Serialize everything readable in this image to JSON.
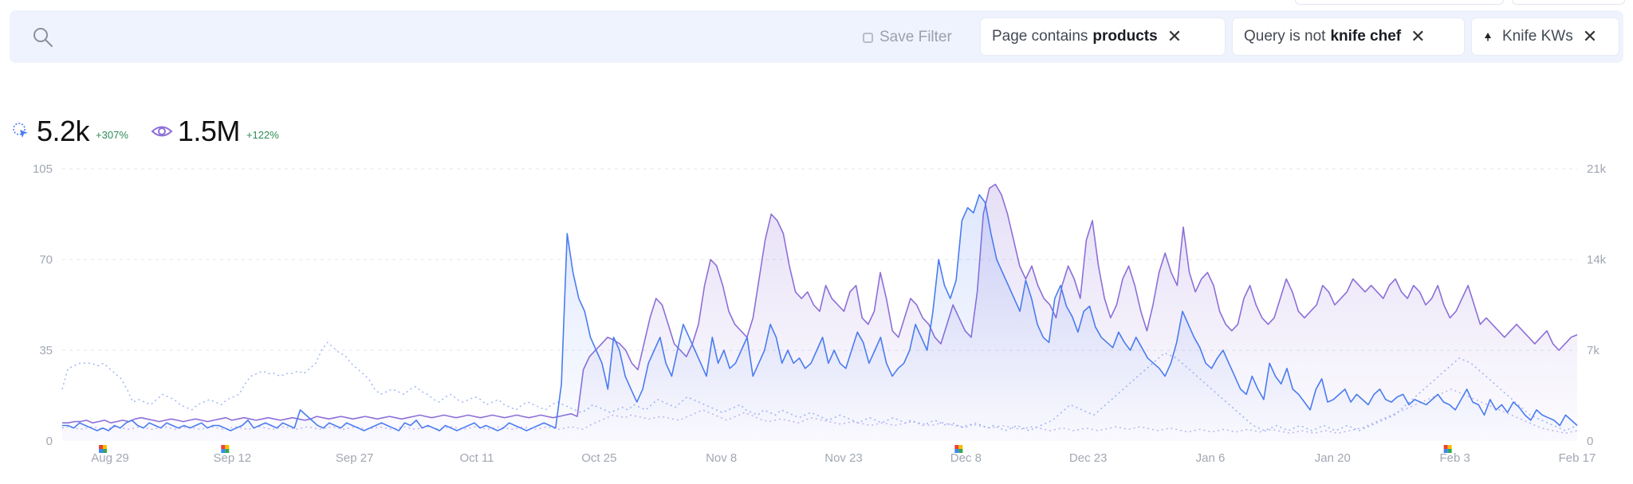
{
  "filter_bar": {
    "save_filter_label": "Save Filter",
    "chips": [
      {
        "prefix": "Page contains",
        "value": "products",
        "icon": "",
        "close": "✕"
      },
      {
        "prefix": "Query is not",
        "value": "knife chef",
        "icon": "",
        "close": "✕"
      },
      {
        "prefix": "Knife KWs",
        "value": "",
        "icon": "pin-icon",
        "close": "✕"
      }
    ]
  },
  "metrics": {
    "clicks": {
      "icon": "click-cursor-icon",
      "value": "5.2k",
      "delta": "+307%",
      "color": "#4a7cf0"
    },
    "impressions": {
      "icon": "eye-icon",
      "value": "1.5M",
      "delta": "+122%",
      "color": "#8d6fd8"
    }
  },
  "colors": {
    "clicks": "#4a7cf0",
    "impressions": "#8d6fd8",
    "delta_positive": "#2e8b57",
    "filter_bg": "#eef3fd"
  },
  "chart_data": {
    "type": "line",
    "x_labels": [
      "Aug 29",
      "Sep 12",
      "Sep 27",
      "Oct 11",
      "Oct 25",
      "Nov 8",
      "Nov 23",
      "Dec 8",
      "Dec 23",
      "Jan 6",
      "Jan 20",
      "Feb 3",
      "Feb 17"
    ],
    "annotation_labels": [
      "Aug 29",
      "Sep 12",
      "Dec 8",
      "Feb 3"
    ],
    "y_left": {
      "ticks": [
        "0",
        "35",
        "70",
        "105"
      ],
      "range": [
        0,
        105
      ]
    },
    "y_right": {
      "ticks": [
        "0",
        "7k",
        "14k",
        "21k"
      ],
      "range": [
        0,
        21000
      ]
    },
    "grid": true,
    "series": [
      {
        "role": "clicks",
        "axis": "left",
        "style": "solid",
        "values": [
          6,
          6,
          5,
          7,
          6,
          5,
          4,
          5,
          4,
          6,
          5,
          7,
          8,
          6,
          5,
          7,
          6,
          5,
          7,
          6,
          5,
          6,
          5,
          6,
          7,
          5,
          6,
          6,
          5,
          4,
          5,
          6,
          8,
          5,
          6,
          7,
          6,
          5,
          7,
          6,
          5,
          12,
          10,
          8,
          6,
          5,
          7,
          6,
          5,
          7,
          6,
          5,
          4,
          5,
          6,
          7,
          6,
          5,
          4,
          7,
          6,
          8,
          5,
          6,
          5,
          4,
          6,
          5,
          4,
          5,
          6,
          7,
          5,
          6,
          5,
          4,
          5,
          7,
          6,
          5,
          4,
          5,
          6,
          7,
          6,
          5,
          22,
          80,
          65,
          55,
          50,
          40,
          35,
          30,
          20,
          40,
          35,
          25,
          20,
          15,
          20,
          30,
          35,
          40,
          30,
          25,
          35,
          45,
          40,
          35,
          30,
          25,
          40,
          30,
          35,
          28,
          30,
          35,
          40,
          25,
          30,
          35,
          45,
          40,
          30,
          35,
          30,
          32,
          28,
          30,
          35,
          40,
          30,
          35,
          30,
          28,
          35,
          42,
          38,
          30,
          35,
          40,
          30,
          25,
          28,
          30,
          35,
          45,
          40,
          35,
          50,
          70,
          60,
          55,
          62,
          85,
          90,
          88,
          95,
          92,
          80,
          70,
          65,
          60,
          55,
          50,
          62,
          55,
          45,
          40,
          38,
          55,
          60,
          52,
          48,
          42,
          50,
          52,
          44,
          40,
          38,
          36,
          42,
          38,
          35,
          40,
          36,
          32,
          30,
          28,
          25,
          30,
          38,
          50,
          45,
          40,
          36,
          30,
          28,
          32,
          35,
          30,
          25,
          20,
          18,
          25,
          20,
          16,
          30,
          25,
          22,
          28,
          20,
          18,
          15,
          12,
          20,
          24,
          15,
          16,
          18,
          20,
          15,
          18,
          16,
          14,
          18,
          20,
          16,
          15,
          17,
          18,
          14,
          16,
          15,
          14,
          16,
          18,
          15,
          14,
          12,
          16,
          20,
          15,
          14,
          10,
          16,
          12,
          14,
          11,
          15,
          13,
          10,
          8,
          12,
          10,
          9,
          8,
          6,
          10,
          8,
          6
        ]
      },
      {
        "role": "impressions",
        "axis": "right",
        "style": "solid-area",
        "values": [
          1400,
          1400,
          1500,
          1500,
          1600,
          1400,
          1500,
          1600,
          1400,
          1500,
          1600,
          1500,
          1700,
          1800,
          1700,
          1600,
          1500,
          1600,
          1700,
          1600,
          1500,
          1600,
          1700,
          1600,
          1500,
          1600,
          1700,
          1800,
          1600,
          1700,
          1800,
          1700,
          1600,
          1700,
          1800,
          1700,
          1600,
          1700,
          1800,
          1700,
          1600,
          1700,
          1900,
          1800,
          1700,
          1800,
          1900,
          1800,
          1700,
          1800,
          1900,
          1800,
          1700,
          1800,
          1900,
          1800,
          1700,
          1800,
          1900,
          2000,
          1900,
          1800,
          1900,
          2000,
          1900,
          1800,
          1900,
          2000,
          1900,
          1800,
          1900,
          2000,
          1900,
          1800,
          1900,
          2000,
          1900,
          1800,
          1900,
          2000,
          1900,
          1800,
          1900,
          2000,
          2100,
          1900,
          5500,
          6500,
          7000,
          7500,
          8000,
          7800,
          7500,
          7000,
          6000,
          5500,
          7500,
          9500,
          11000,
          10500,
          9000,
          7500,
          7000,
          6500,
          7500,
          9000,
          12000,
          14000,
          13500,
          12000,
          10000,
          9000,
          8500,
          8000,
          9500,
          12500,
          15500,
          17500,
          17000,
          16000,
          13500,
          11500,
          11000,
          11500,
          10500,
          10000,
          12000,
          11000,
          10500,
          10000,
          11500,
          12000,
          9500,
          9000,
          10000,
          13000,
          11000,
          8500,
          8000,
          9500,
          11000,
          10500,
          9500,
          9000,
          8000,
          7500,
          9000,
          10500,
          9500,
          8500,
          8000,
          11500,
          17500,
          19500,
          19800,
          19000,
          17500,
          15500,
          13500,
          12500,
          13500,
          12000,
          11000,
          10500,
          9500,
          12000,
          13500,
          12500,
          11000,
          15500,
          17000,
          13500,
          11000,
          9500,
          10500,
          12500,
          13500,
          12000,
          10000,
          8500,
          10500,
          13000,
          14500,
          13000,
          12000,
          16500,
          13000,
          11500,
          12500,
          13000,
          12000,
          10000,
          9000,
          8500,
          9000,
          11000,
          12000,
          10500,
          9500,
          9000,
          9500,
          11000,
          12500,
          11500,
          10000,
          9500,
          10000,
          10500,
          12000,
          11500,
          10500,
          11000,
          11500,
          12500,
          12000,
          11500,
          12000,
          11500,
          11000,
          12000,
          12500,
          11500,
          11000,
          12000,
          11500,
          10500,
          11000,
          12000,
          10500,
          9500,
          10000,
          11000,
          12000,
          10500,
          9000,
          9500,
          9000,
          8500,
          8000,
          8500,
          9000,
          8500,
          8000,
          7500,
          8000,
          8500,
          7500,
          7000,
          7500,
          8000,
          8200
        ]
      },
      {
        "role": "clicks-previous",
        "axis": "left",
        "style": "dotted",
        "values": [
          20,
          28,
          29,
          30,
          30,
          30,
          29,
          30,
          28,
          26,
          24,
          20,
          15,
          16,
          15,
          14,
          16,
          18,
          17,
          16,
          14,
          13,
          12,
          14,
          15,
          16,
          15,
          14,
          16,
          17,
          18,
          22,
          25,
          26,
          27,
          26,
          26,
          25,
          26,
          26,
          27,
          26,
          28,
          30,
          35,
          38,
          36,
          34,
          33,
          30,
          28,
          26,
          24,
          20,
          18,
          19,
          20,
          19,
          18,
          20,
          21,
          19,
          18,
          16,
          15,
          17,
          18,
          16,
          15,
          16,
          17,
          16,
          14,
          15,
          16,
          14,
          13,
          12,
          14,
          15,
          14,
          13,
          12,
          14,
          15,
          14,
          13,
          12,
          11,
          12,
          14,
          13,
          12,
          11,
          12,
          13,
          12,
          14,
          13,
          12,
          14,
          16,
          15,
          14,
          13,
          15,
          17,
          16,
          15,
          14,
          13,
          12,
          11,
          12,
          13,
          14,
          12,
          11,
          10,
          12,
          11,
          10,
          12,
          11,
          10,
          9,
          10,
          11,
          10,
          9,
          8,
          9,
          10,
          9,
          8,
          7,
          8,
          9,
          8,
          7,
          8,
          9,
          8,
          7,
          8,
          7,
          6,
          7,
          8,
          7,
          6,
          7,
          6,
          5,
          6,
          7,
          6,
          5,
          6,
          5,
          4,
          5,
          6,
          5,
          4,
          5,
          6,
          7,
          8,
          10,
          12,
          14,
          13,
          12,
          11,
          10,
          12,
          14,
          16,
          18,
          20,
          22,
          24,
          26,
          28,
          30,
          32,
          34,
          33,
          32,
          30,
          28,
          26,
          24,
          22,
          20,
          18,
          16,
          14,
          12,
          10,
          8,
          6,
          5,
          4,
          5,
          6,
          5,
          4,
          5,
          6,
          5,
          4,
          5,
          6,
          5,
          4,
          5,
          6,
          5,
          4,
          5,
          6,
          7,
          8,
          9,
          10,
          12,
          14,
          16,
          18,
          20,
          22,
          24,
          26,
          28,
          30,
          32,
          31,
          30,
          28,
          26,
          24,
          22,
          20,
          18,
          16,
          14,
          12,
          10,
          9,
          8,
          7,
          6,
          5,
          4,
          5,
          6
        ]
      },
      {
        "role": "impressions-previous",
        "axis": "right",
        "style": "dotted",
        "values": [
          1000,
          1100,
          1000,
          900,
          1000,
          1100,
          1000,
          900,
          1000,
          1100,
          1000,
          900,
          1000,
          1100,
          1000,
          900,
          1000,
          1100,
          1000,
          900,
          1000,
          1100,
          1000,
          900,
          1000,
          1100,
          1000,
          900,
          1000,
          1100,
          1000,
          900,
          1000,
          1100,
          1000,
          900,
          1000,
          1100,
          1000,
          900,
          1000,
          1100,
          1000,
          900,
          1000,
          1100,
          1000,
          900,
          1000,
          1100,
          1000,
          900,
          1000,
          1100,
          1000,
          900,
          1000,
          1100,
          1000,
          900,
          1000,
          1100,
          1000,
          900,
          1000,
          1100,
          1000,
          900,
          1000,
          1100,
          1000,
          900,
          1000,
          1100,
          1000,
          900,
          1000,
          1100,
          1000,
          900,
          1000,
          1100,
          1000,
          900,
          1000,
          1100,
          1000,
          900,
          1200,
          1400,
          1600,
          1800,
          2000,
          1900,
          1800,
          2000,
          1900,
          1800,
          1700,
          1800,
          1900,
          1800,
          1700,
          1600,
          1800,
          2000,
          2200,
          2400,
          2200,
          2000,
          1800,
          1600,
          1800,
          2000,
          2200,
          2000,
          1800,
          1600,
          1500,
          1600,
          1700,
          1600,
          1500,
          1400,
          1600,
          1800,
          1700,
          1600,
          1500,
          1400,
          1300,
          1400,
          1500,
          1400,
          1300,
          1200,
          1300,
          1400,
          1300,
          1200,
          1300,
          1400,
          1500,
          1400,
          1300,
          1200,
          1300,
          1400,
          1300,
          1200,
          1100,
          1200,
          1300,
          1200,
          1100,
          1000,
          1100,
          1200,
          1100,
          1000,
          900,
          1000,
          1100,
          1000,
          900,
          800,
          900,
          1000,
          900,
          800,
          900,
          1000,
          900,
          800,
          900,
          1000,
          1100,
          1000,
          900,
          1000,
          1100,
          1000,
          900,
          800,
          900,
          1000,
          900,
          800,
          700,
          800,
          900,
          800,
          700,
          800,
          900,
          800,
          700,
          800,
          900,
          800,
          700,
          800,
          900,
          800,
          700,
          600,
          700,
          800,
          700,
          600,
          700,
          800,
          700,
          600,
          700,
          800,
          900,
          1000,
          1200,
          1400,
          1600,
          1800,
          2000,
          2200,
          2400,
          2600,
          2800,
          3000,
          3200,
          3400,
          3600,
          3800,
          4000,
          3800,
          3600,
          3400,
          3200,
          3000,
          2800,
          2600,
          2400,
          2200,
          2000,
          1800,
          1600,
          1400,
          1200,
          1000,
          900,
          800,
          700,
          600,
          700,
          800
        ]
      }
    ]
  }
}
